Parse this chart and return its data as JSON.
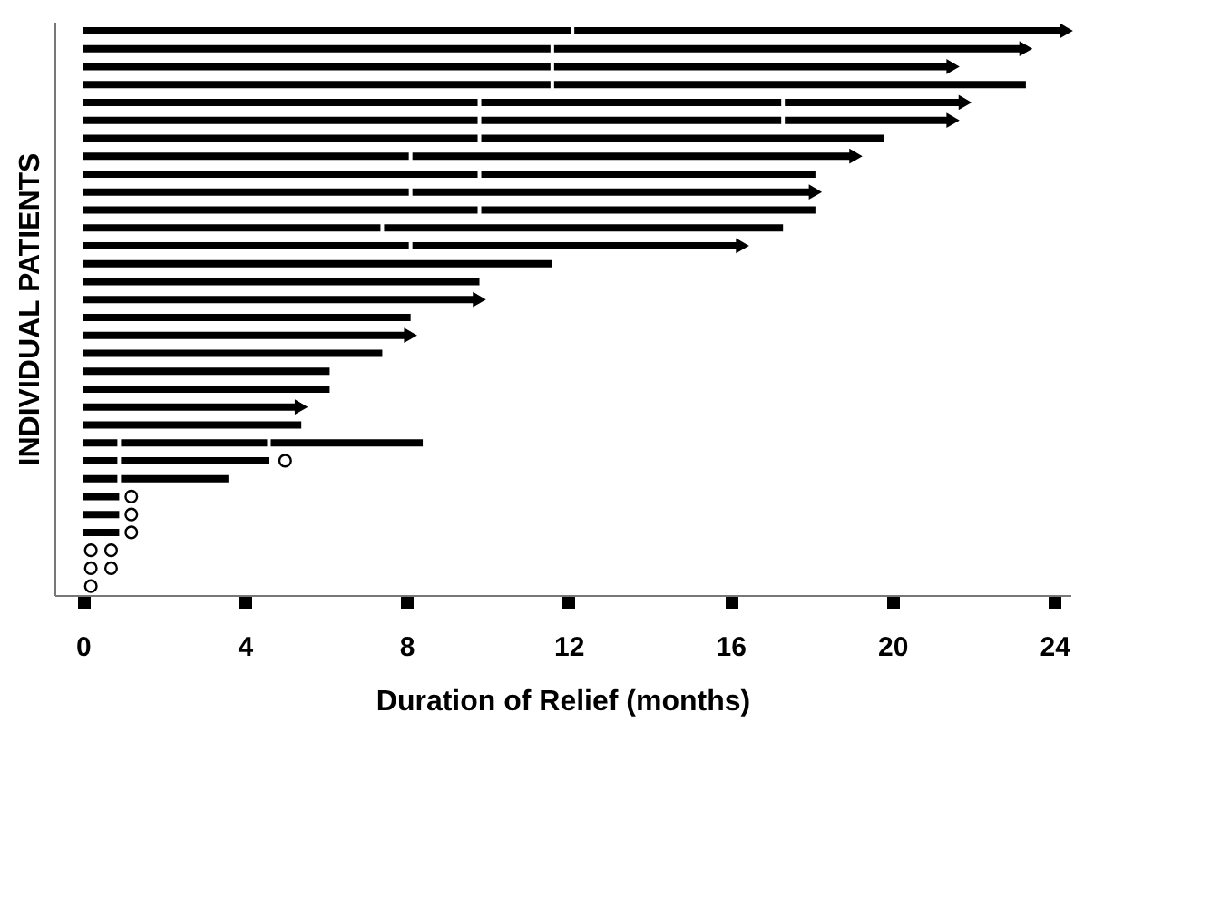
{
  "chart_data": {
    "type": "bar",
    "orientation": "horizontal",
    "stacked": true,
    "categories": [
      null,
      null,
      null,
      null,
      null,
      null,
      null,
      null,
      null,
      null,
      null,
      null,
      null,
      null,
      null,
      null,
      null,
      null,
      null,
      null,
      null,
      null,
      null,
      null,
      null,
      null,
      null,
      null,
      null,
      null,
      null,
      null
    ],
    "xlabel": "Duration of Relief (months)",
    "ylabel": "INDIVIDUAL PATIENTS",
    "xlim": [
      -0.7,
      24.4
    ],
    "xticks": [
      0,
      4,
      8,
      12,
      16,
      20,
      24
    ],
    "grid": false,
    "tick_labels": "x",
    "series": [
      {
        "color": "#000000",
        "values": [
          12.1,
          11.6,
          11.6,
          11.6,
          9.8,
          9.8,
          9.8,
          8.1,
          9.8,
          8.1,
          9.8,
          7.4,
          8.1,
          11.6,
          9.8,
          9.8,
          8.1,
          8.1,
          7.4,
          6.1,
          6.1,
          5.4,
          5.4,
          0.9,
          0.9,
          0.9,
          0.9,
          0.9,
          0.9,
          null,
          null,
          null
        ]
      },
      {
        "color": "#000000",
        "values": [
          12.2,
          11.7,
          9.9,
          11.7,
          7.5,
          7.5,
          10.0,
          11.0,
          8.3,
          10.0,
          8.3,
          9.9,
          8.2,
          null,
          null,
          null,
          null,
          null,
          null,
          null,
          null,
          null,
          null,
          3.7,
          3.7,
          2.7,
          null,
          null,
          null,
          null,
          null,
          null
        ]
      },
      {
        "color": "#000000",
        "values": [
          null,
          null,
          null,
          null,
          4.5,
          4.2,
          null,
          null,
          null,
          null,
          null,
          null,
          null,
          null,
          null,
          null,
          null,
          null,
          null,
          null,
          null,
          null,
          null,
          3.8,
          null,
          null,
          null,
          null,
          null,
          null,
          null,
          null
        ]
      },
      {
        "type": "scatter",
        "marker": "triangle",
        "color": "#000000",
        "values": [
          24.3,
          23.3,
          21.5,
          null,
          21.8,
          21.5,
          null,
          19.1,
          null,
          18.1,
          null,
          null,
          16.3,
          null,
          null,
          9.8,
          null,
          8.1,
          null,
          null,
          null,
          5.4,
          null,
          null,
          null,
          null,
          null,
          null,
          null,
          null,
          null,
          null
        ]
      },
      {
        "type": "scatter",
        "marker": "circle",
        "color": "#000000",
        "values": [
          null,
          null,
          null,
          null,
          null,
          null,
          null,
          null,
          null,
          null,
          null,
          null,
          null,
          null,
          null,
          null,
          null,
          null,
          null,
          null,
          null,
          null,
          null,
          null,
          5.0,
          null,
          1.2,
          1.2,
          1.2,
          0.2,
          0.2,
          0.2
        ]
      },
      {
        "type": "scatter",
        "marker": "circle",
        "color": "#000000",
        "values": [
          null,
          null,
          null,
          null,
          null,
          null,
          null,
          null,
          null,
          null,
          null,
          null,
          null,
          null,
          null,
          null,
          null,
          null,
          null,
          null,
          null,
          null,
          null,
          null,
          null,
          null,
          null,
          null,
          null,
          0.7,
          0.7,
          null
        ]
      }
    ]
  }
}
